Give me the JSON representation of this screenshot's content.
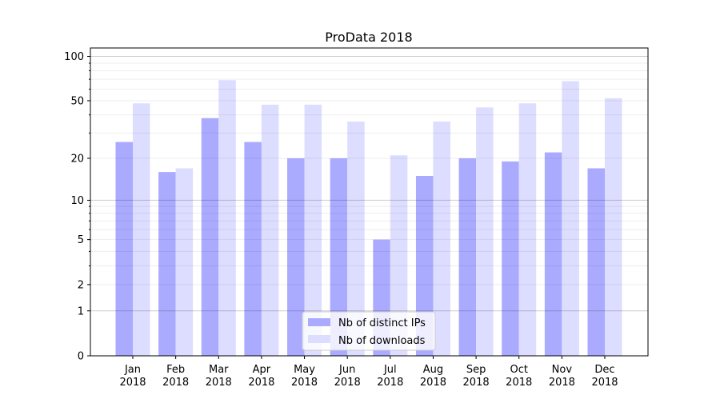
{
  "chart_data": {
    "type": "bar",
    "title": "ProData 2018",
    "xlabel": "",
    "ylabel": "",
    "yscale": "log(1+y)",
    "ylim": [
      0,
      114
    ],
    "yticks": [
      0,
      1,
      2,
      5,
      10,
      20,
      50,
      100
    ],
    "grid": true,
    "legend_placement": "bottom-center",
    "categories": [
      "Jan\n2018",
      "Feb\n2018",
      "Mar\n2018",
      "Apr\n2018",
      "May\n2018",
      "Jun\n2018",
      "Jul\n2018",
      "Aug\n2018",
      "Sep\n2018",
      "Oct\n2018",
      "Nov\n2018",
      "Dec\n2018"
    ],
    "series": [
      {
        "name": "Nb of distinct IPs",
        "color": "#aaaaff",
        "values": [
          26,
          16,
          38,
          26,
          20,
          20,
          5,
          15,
          20,
          19,
          22,
          17
        ]
      },
      {
        "name": "Nb of downloads",
        "color": "#ddddff",
        "values": [
          48,
          17,
          69,
          47,
          47,
          36,
          21,
          36,
          45,
          48,
          68,
          52
        ]
      }
    ]
  }
}
